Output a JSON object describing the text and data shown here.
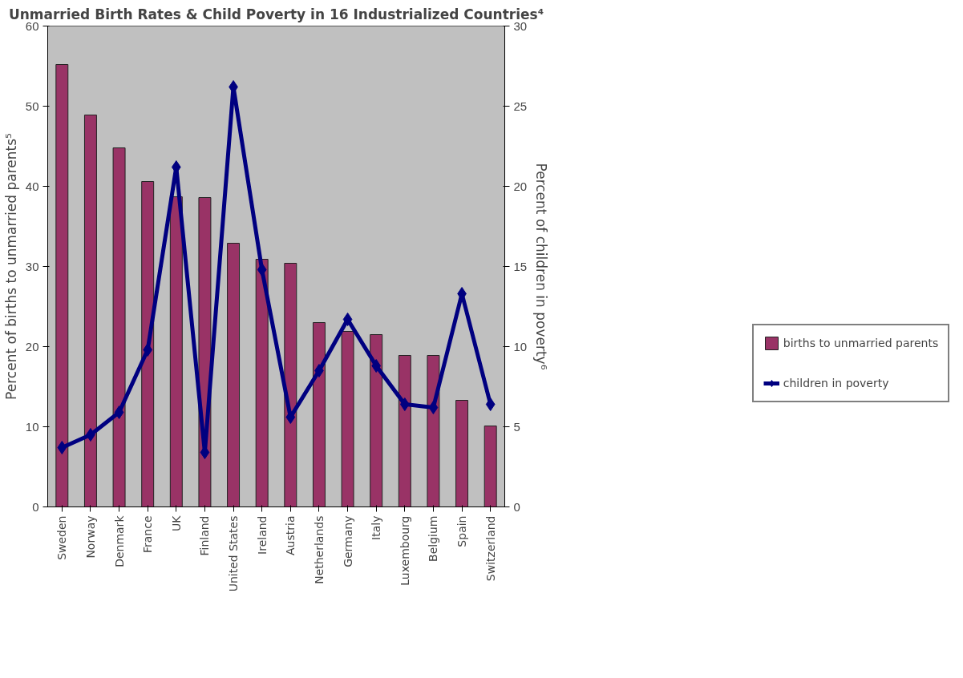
{
  "chart_data": {
    "type": "bar",
    "title": "Unmarried Birth Rates & Child Poverty in 16 Industrialized Countries⁴",
    "ylabel": "Percent of births to unmarried parents⁵",
    "y2label": "Percent of children in poverty⁶",
    "categories": [
      "Sweden",
      "Norway",
      "Denmark",
      "France",
      "UK",
      "Finland",
      "United States",
      "Ireland",
      "Austria",
      "Netherlands",
      "Germany",
      "Italy",
      "Luxembourg",
      "Belgium",
      "Spain",
      "Switzerland"
    ],
    "series": [
      {
        "name": "births to unmarried parents",
        "color": "#993366",
        "values": [
          55.2,
          48.9,
          44.8,
          40.6,
          38.7,
          38.6,
          32.9,
          30.9,
          30.4,
          23.0,
          21.9,
          21.5,
          18.9,
          18.9,
          13.3,
          10.1
        ]
      },
      {
        "name": "children in poverty",
        "type": "line",
        "axis": "y2",
        "color": "#000080",
        "marker": "diamond",
        "values": [
          3.7,
          4.5,
          5.9,
          9.8,
          21.2,
          3.4,
          26.2,
          14.8,
          5.6,
          8.5,
          11.7,
          8.8,
          6.4,
          6.2,
          13.3,
          6.4
        ]
      }
    ],
    "ylim": [
      0,
      60
    ],
    "yticks": [
      0,
      10,
      20,
      30,
      40,
      50,
      60
    ],
    "y2lim": [
      0,
      30
    ],
    "y2ticks": [
      0,
      5,
      10,
      15,
      20,
      25,
      30
    ],
    "grid": false,
    "legend": "right"
  }
}
